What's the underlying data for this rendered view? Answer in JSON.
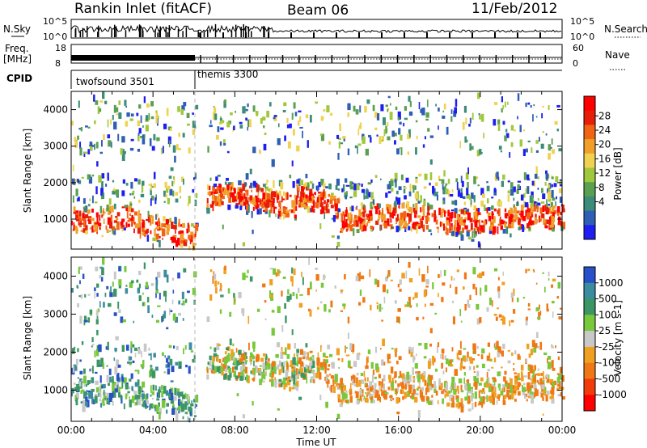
{
  "header": {
    "station": "Rankin Inlet (fitACF)",
    "beam": "Beam 06",
    "date": "11/Feb/2012"
  },
  "strips": {
    "nsky_label": "N.Sky",
    "nsky_ticks": [
      "10^5",
      "10^0"
    ],
    "nsearch_label": "N.Search",
    "nsearch_ticks": [
      "10^5",
      "10^0"
    ],
    "freq_label": "Freq.",
    "freq_unit": "[MHz]",
    "freq_ticks": [
      "18",
      "8"
    ],
    "nave_label": "Nave",
    "nave_ticks": [
      "60",
      "0"
    ],
    "cpid_label": "CPID",
    "cpid_segments": [
      {
        "name": "twofsound 3501",
        "start_hour": 0,
        "end_hour": 6.1
      },
      {
        "name": "themis 3300",
        "start_hour": 6.1,
        "end_hour": 24
      }
    ]
  },
  "chart_data": [
    {
      "type": "heatmap",
      "quantity": "power",
      "ylabel": "Slant Range [km]",
      "xlabel": "Time UT",
      "xlim": [
        0,
        24
      ],
      "ylim": [
        180,
        4500
      ],
      "x_ticks": [
        "00:00",
        "04:00",
        "08:00",
        "12:00",
        "16:00",
        "20:00",
        "00:00"
      ],
      "y_ticks": [
        1000,
        2000,
        3000,
        4000
      ],
      "colorbar": {
        "label": "Power [dB]",
        "ticks": [
          "4",
          "8",
          "12",
          "16",
          "20",
          "24",
          "28"
        ],
        "colors": [
          "#1e1ef0",
          "#2f5fb4",
          "#3c8c78",
          "#5aa050",
          "#a0c83c",
          "#f0d250",
          "#f0a028",
          "#f06414",
          "#e61e0a",
          "#ff0000"
        ]
      },
      "data_gap_hours": [
        6.1,
        6.6
      ]
    },
    {
      "type": "heatmap",
      "quantity": "velocity",
      "ylabel": "Slant Range [km]",
      "xlabel": "Time UT",
      "xlim": [
        0,
        24
      ],
      "ylim": [
        180,
        4500
      ],
      "x_ticks": [
        "00:00",
        "04:00",
        "08:00",
        "12:00",
        "16:00",
        "20:00",
        "00:00"
      ],
      "y_ticks": [
        1000,
        2000,
        3000,
        4000
      ],
      "colorbar": {
        "label": "Velocity [m s-1]",
        "ticks": [
          "1000",
          "500",
          "100",
          "25",
          "-25",
          "-100",
          "-500",
          "-1000"
        ],
        "colors": [
          "#2850c8",
          "#3c8ca0",
          "#3c9664",
          "#78c83c",
          "#c8c8c8",
          "#f0a020",
          "#f07814",
          "#f03c0a",
          "#ff0000"
        ]
      },
      "data_gap_hours": [
        6.1,
        6.6
      ]
    }
  ]
}
